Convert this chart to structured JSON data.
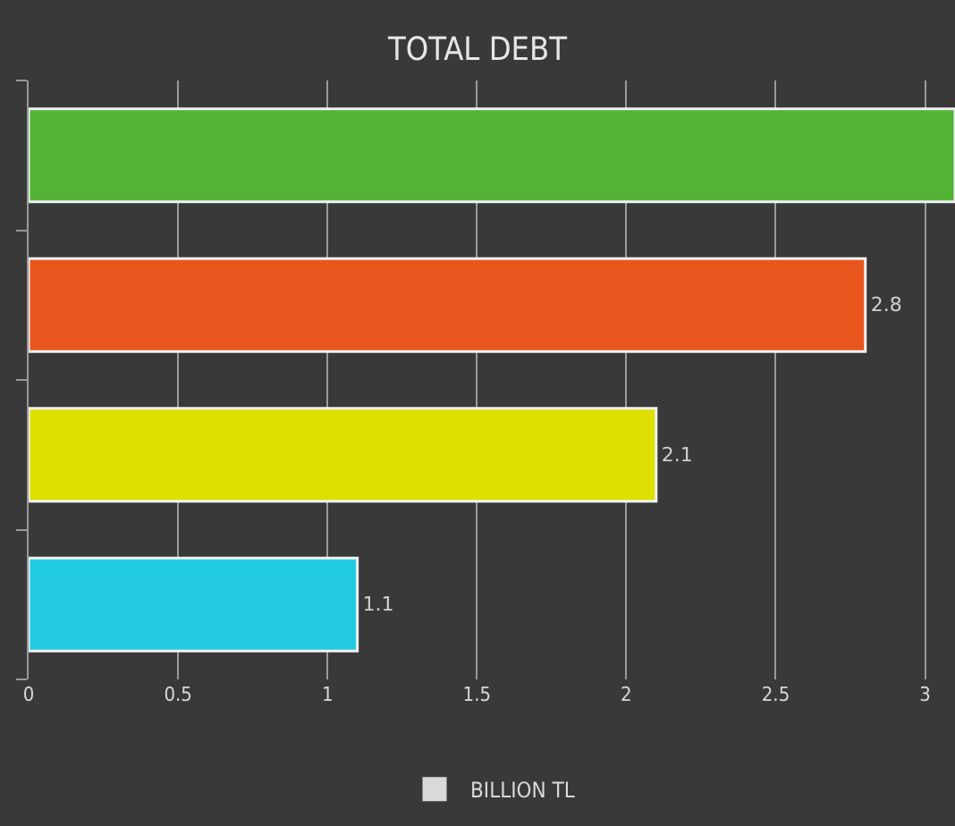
{
  "chart_data": {
    "type": "bar",
    "title": "TOTAL DEBT",
    "orientation": "horizontal",
    "categories": [
      null,
      null,
      null,
      null
    ],
    "series": [
      {
        "name": "BILLION TL",
        "color": "#d9d9d9",
        "colors": [
          "#52b335",
          "#e9561d",
          "#dde000",
          "#22cbe2"
        ],
        "values": [
          3.1,
          2.8,
          2.1,
          1.1
        ],
        "value_labels": [
          null,
          "2.8",
          "2.1",
          "1.1"
        ]
      }
    ],
    "xlim": [
      0,
      3.1
    ],
    "xticks": [
      0,
      0.5,
      1,
      1.5,
      2,
      2.5,
      3
    ],
    "grid": "x",
    "legend": "bottom"
  }
}
